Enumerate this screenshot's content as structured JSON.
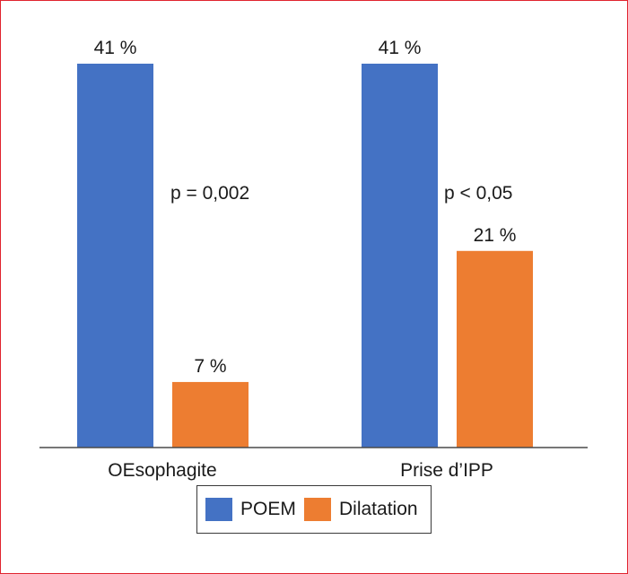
{
  "chart_data": {
    "type": "bar",
    "categories": [
      "OEsophagite",
      "Prise d’IPP"
    ],
    "series": [
      {
        "name": "POEM",
        "values": [
          41,
          41
        ],
        "labels": [
          "41 %",
          "41 %"
        ],
        "color": "#4472c4"
      },
      {
        "name": "Dilatation",
        "values": [
          7,
          21
        ],
        "labels": [
          "7 %",
          "21 %"
        ],
        "color": "#ed7d31"
      }
    ],
    "annotations": [
      "p = 0,002",
      "p < 0,05"
    ],
    "ylim": [
      0,
      41
    ],
    "grid": false,
    "legend_position": "bottom",
    "border_color": "#e0242f"
  }
}
